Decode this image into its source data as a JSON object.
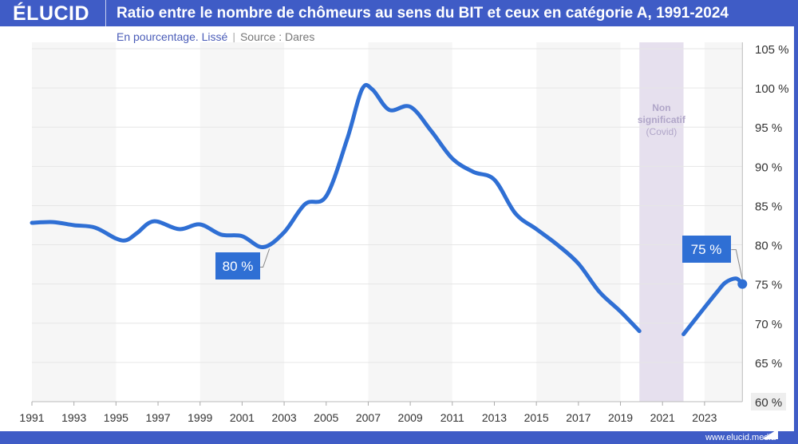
{
  "header": {
    "logo": "ÉLUCID",
    "title": "Ratio entre le nombre de chômeurs au sens du BIT et ceux en catégorie A, 1991-2024"
  },
  "subtitle": {
    "unit": "En pourcentage. Lissé",
    "source": "Source : Dares"
  },
  "footer": {
    "url": "www.elucid.media"
  },
  "colors": {
    "frame": "#3f5cc6",
    "line": "#2f6fd4",
    "covid_band": "#e6e0ee",
    "stripe": "#f6f6f6",
    "flag": [
      "#1a1f5c",
      "#ffffff",
      "#d8000c"
    ]
  },
  "chart_data": {
    "type": "line",
    "title": "Ratio entre le nombre de chômeurs au sens du BIT et ceux en catégorie A, 1991-2024",
    "xlim": [
      1991,
      2024.8
    ],
    "ylim": [
      60,
      105
    ],
    "x_ticks": [
      "1991",
      "1993",
      "1995",
      "1997",
      "1999",
      "2001",
      "2003",
      "2005",
      "2007",
      "2009",
      "2011",
      "2013",
      "2015",
      "2017",
      "2019",
      "2021",
      "2023"
    ],
    "y_ticks": [
      "60 %",
      "65 %",
      "70 %",
      "75 %",
      "80 %",
      "85 %",
      "90 %",
      "95 %",
      "100 %",
      "105 %"
    ],
    "grid": true,
    "series": [
      {
        "x": [
          1991,
          1992,
          1993,
          1994,
          1995,
          1995.5,
          1996,
          1996.8,
          1998,
          1999,
          2000,
          2001,
          2002,
          2003,
          2004,
          2005,
          2006,
          2006.7,
          2007.2,
          2008,
          2009,
          2010,
          2011,
          2012,
          2013,
          2014,
          2015,
          2016,
          2017,
          2018,
          2019,
          2019.9
        ],
        "y": [
          82.8,
          82.9,
          82.5,
          82.2,
          80.8,
          80.6,
          81.5,
          83.0,
          82.0,
          82.6,
          81.3,
          81.1,
          79.7,
          81.6,
          85.2,
          86.2,
          93.5,
          99.8,
          99.8,
          97.2,
          97.6,
          94.5,
          91.0,
          89.3,
          88.3,
          84.0,
          82.0,
          80.0,
          77.6,
          74.0,
          71.5,
          69.0
        ]
      },
      {
        "x": [
          2022,
          2023,
          2023.6,
          2024,
          2024.5,
          2024.8
        ],
        "y": [
          68.6,
          72.0,
          74.0,
          75.2,
          75.7,
          75.0
        ]
      }
    ],
    "annotations": [
      {
        "label": "80 %",
        "x": 2002.3,
        "y": 79.7
      },
      {
        "label": "75 %",
        "x": 2024.8,
        "y": 75.0
      }
    ],
    "covid_band": {
      "from": 2019.9,
      "to": 2022,
      "label": [
        "Non",
        "significatif",
        "(Covid)"
      ]
    },
    "stripes": [
      [
        1991,
        1995
      ],
      [
        1999,
        2003
      ],
      [
        2007,
        2011
      ],
      [
        2015,
        2019
      ],
      [
        2023,
        2024.8
      ]
    ]
  }
}
